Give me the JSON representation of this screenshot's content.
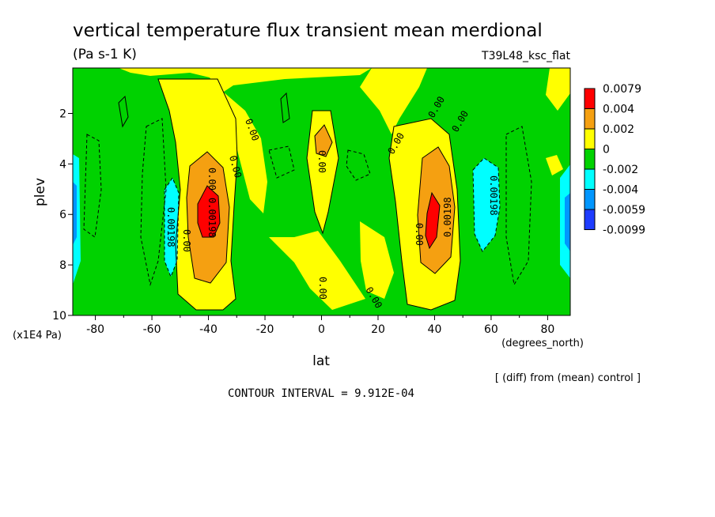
{
  "chart_data": {
    "type": "heatmap",
    "title": "vertical temperature flux transient mean merdional",
    "subtitle": "(Pa s-1 K)",
    "run_label": "T39L48_ksc_flat",
    "xlabel": "lat",
    "x_units": "(degrees_north)",
    "ylabel": "plev",
    "y_units": "(x1E4 Pa)",
    "xlim": [
      -88,
      88
    ],
    "ylim": [
      10,
      0.2
    ],
    "x_ticks": [
      -80,
      -60,
      -40,
      -20,
      0,
      20,
      40,
      60,
      80
    ],
    "x_tick_labels": [
      "-80",
      "-60",
      "-40",
      "-20",
      "0",
      "20",
      "40",
      "60",
      "80"
    ],
    "y_ticks": [
      2,
      4,
      6,
      8,
      10
    ],
    "y_tick_labels": [
      "2",
      "4",
      "6",
      "8",
      "10"
    ],
    "note": "[ (diff) from (mean) control ]",
    "contour_interval": "CONTOUR INTERVAL = 9.912E-04",
    "legend": {
      "placement": "right",
      "labels": [
        "0.0079",
        "0.004",
        "0.002",
        "0",
        "-0.002",
        "-0.004",
        "-0.0059",
        "-0.0099"
      ],
      "colors": [
        "#ff0000",
        "#f5a011",
        "#ffff00",
        "#00d200",
        "#00ffff",
        "#0096ff",
        "#1e3cff"
      ]
    },
    "levels": [
      -0.0099,
      -0.0059,
      -0.004,
      -0.002,
      0,
      0.002,
      0.004,
      0.0079
    ],
    "contour_labels": [
      "0.00",
      "0.00",
      "0.00",
      "0.00",
      "0.00",
      "0.00",
      "0.00",
      "0.00",
      "0.00",
      "0.00",
      "0.00",
      "0.00198",
      "0.00198",
      "0.00198",
      "0.00198"
    ],
    "features": [
      {
        "lat": -40,
        "plev": 6.0,
        "value": 0.0079
      },
      {
        "lat": 38,
        "plev": 6.0,
        "value": 0.0079
      },
      {
        "lat": -55,
        "plev": 6.3,
        "value": -0.004
      },
      {
        "lat": 58,
        "plev": 5.5,
        "value": -0.004
      },
      {
        "lat": -87,
        "plev": 5.5,
        "value": -0.0059
      },
      {
        "lat": 87,
        "plev": 6.0,
        "value": -0.0059
      },
      {
        "lat": 0,
        "plev": 3.0,
        "value": 0.002
      }
    ]
  }
}
